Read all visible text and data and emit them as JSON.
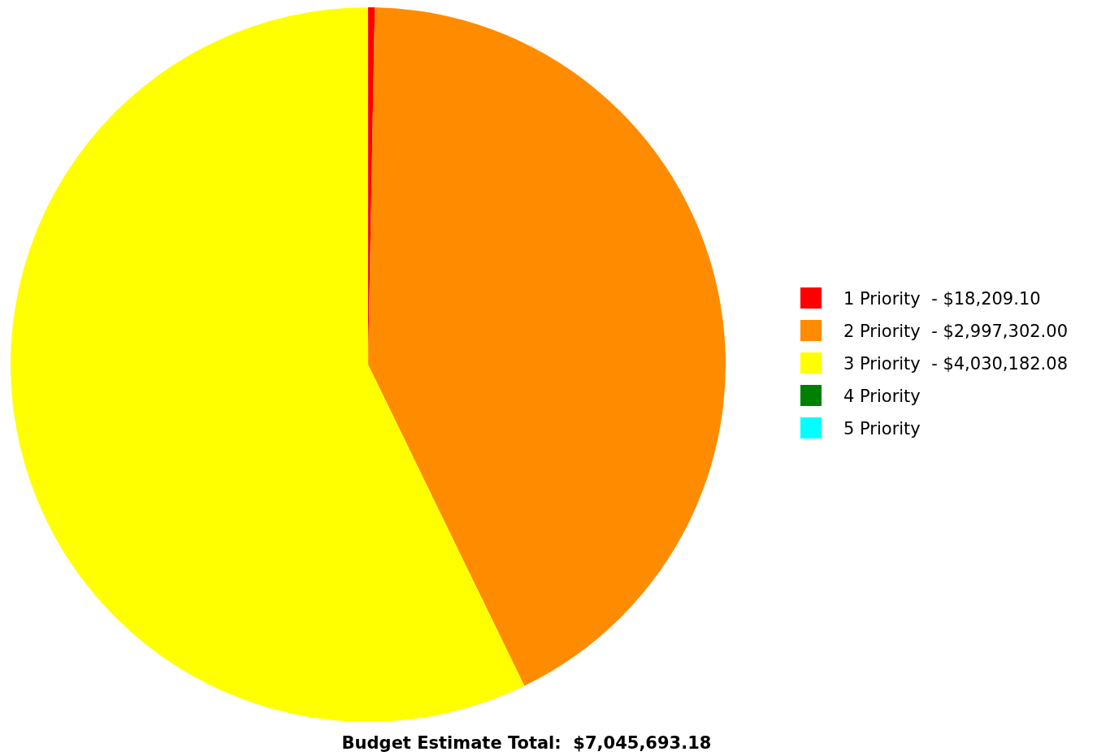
{
  "chart_data": {
    "type": "pie",
    "categories": [
      "1 Priority  - $18,209.10",
      "2 Priority  - $2,997,302.00",
      "3 Priority  - $4,030,182.08",
      "4 Priority",
      "5 Priority"
    ],
    "values": [
      0.3,
      42.5,
      57.2,
      0,
      0
    ],
    "colors": [
      "#ff0000",
      "#ff8c00",
      "#ffff00",
      "#008000",
      "#00ffff"
    ],
    "legend": "right",
    "annotations": [
      "Budget Estimate Total:  $7,045,693.18"
    ]
  }
}
